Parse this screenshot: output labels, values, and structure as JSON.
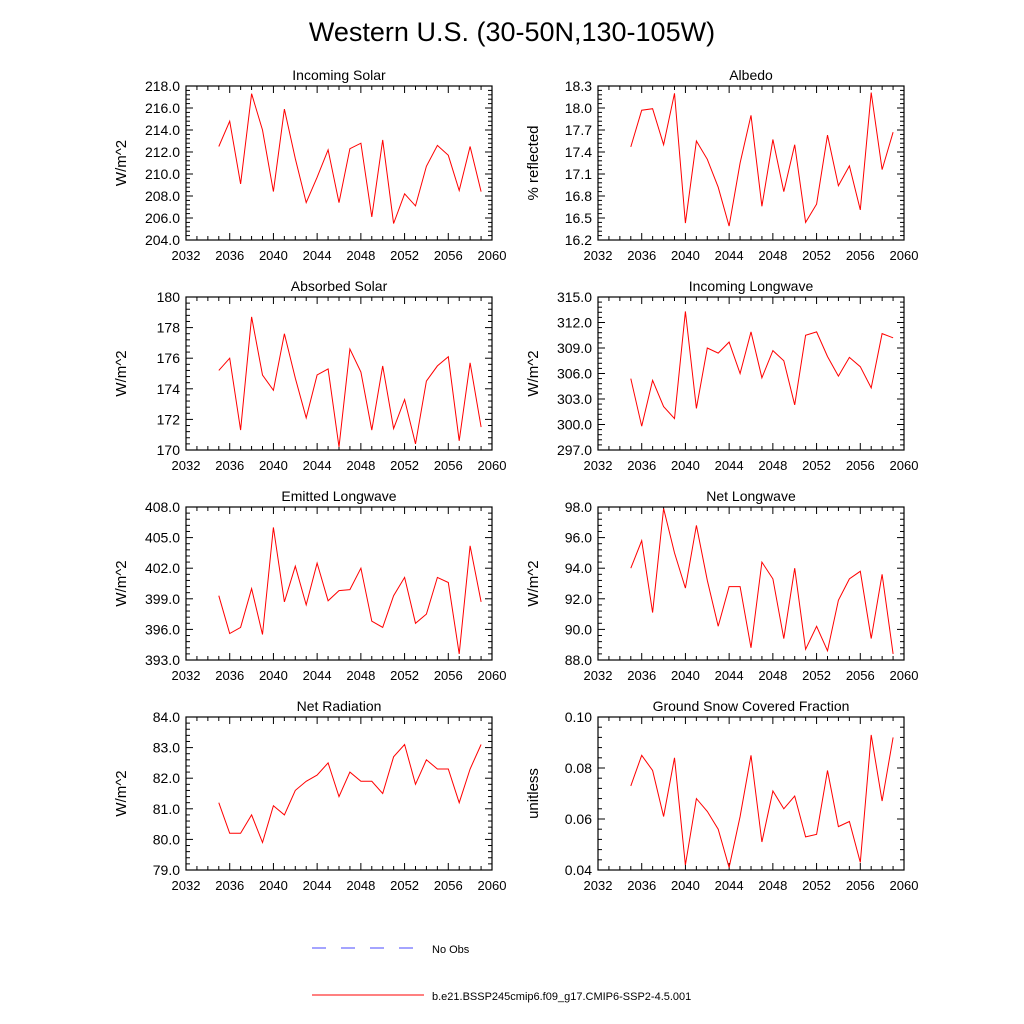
{
  "title": "Western U.S. (30-50N,130-105W)",
  "legend": {
    "obs_label": "No Obs",
    "model_label": "b.e21.BSSP245cmip6.f09_g17.CMIP6-SSP2-4.5.001",
    "obs_color": "#4a4aff",
    "model_color": "#ff0000"
  },
  "chart_data": [
    {
      "type": "line",
      "title": "Incoming Solar",
      "ylabel": "W/m^2",
      "xlim": [
        2032,
        2060
      ],
      "ylim": [
        204.0,
        218.0
      ],
      "xticks": [
        "2032",
        "2036",
        "2040",
        "2044",
        "2048",
        "2052",
        "2056",
        "2060"
      ],
      "yticks": [
        "204.0",
        "206.0",
        "208.0",
        "210.0",
        "212.0",
        "214.0",
        "216.0",
        "218.0"
      ],
      "x": [
        2035,
        2036,
        2037,
        2038,
        2039,
        2040,
        2041,
        2042,
        2043,
        2044,
        2045,
        2046,
        2047,
        2048,
        2049,
        2050,
        2051,
        2052,
        2053,
        2054,
        2055,
        2056,
        2057,
        2058,
        2059
      ],
      "series": [
        {
          "values": [
            212.5,
            214.8,
            209.1,
            217.3,
            214.0,
            208.4,
            215.9,
            211.4,
            207.4,
            209.7,
            212.2,
            207.4,
            212.3,
            212.8,
            206.1,
            213.1,
            205.5,
            208.2,
            207.1,
            210.7,
            212.6,
            211.7,
            208.5,
            212.5,
            208.4
          ]
        }
      ]
    },
    {
      "type": "line",
      "title": "Albedo",
      "ylabel": "% reflected",
      "xlim": [
        2032,
        2060
      ],
      "ylim": [
        16.2,
        18.3
      ],
      "xticks": [
        "2032",
        "2036",
        "2040",
        "2044",
        "2048",
        "2052",
        "2056",
        "2060"
      ],
      "yticks": [
        "16.2",
        "16.5",
        "16.8",
        "17.1",
        "17.4",
        "17.7",
        "18.0",
        "18.3"
      ],
      "x": [
        2035,
        2036,
        2037,
        2038,
        2039,
        2040,
        2041,
        2042,
        2043,
        2044,
        2045,
        2046,
        2047,
        2048,
        2049,
        2050,
        2051,
        2052,
        2053,
        2054,
        2055,
        2056,
        2057,
        2058,
        2059
      ],
      "series": [
        {
          "values": [
            17.47,
            17.97,
            17.99,
            17.5,
            18.2,
            16.43,
            17.55,
            17.3,
            16.92,
            16.39,
            17.25,
            17.9,
            16.66,
            17.57,
            16.86,
            17.5,
            16.44,
            16.69,
            17.63,
            16.94,
            17.21,
            16.61,
            18.21,
            17.16,
            17.67
          ]
        }
      ]
    },
    {
      "type": "line",
      "title": "Absorbed Solar",
      "ylabel": "W/m^2",
      "xlim": [
        2032,
        2060
      ],
      "ylim": [
        170,
        180
      ],
      "xticks": [
        "2032",
        "2036",
        "2040",
        "2044",
        "2048",
        "2052",
        "2056",
        "2060"
      ],
      "yticks": [
        "170",
        "172",
        "174",
        "176",
        "178",
        "180"
      ],
      "x": [
        2035,
        2036,
        2037,
        2038,
        2039,
        2040,
        2041,
        2042,
        2043,
        2044,
        2045,
        2046,
        2047,
        2048,
        2049,
        2050,
        2051,
        2052,
        2053,
        2054,
        2055,
        2056,
        2057,
        2058,
        2059
      ],
      "series": [
        {
          "values": [
            175.2,
            176.0,
            171.3,
            178.7,
            174.9,
            173.9,
            177.6,
            174.7,
            172.1,
            174.9,
            175.3,
            170.2,
            176.6,
            175.1,
            171.3,
            175.5,
            171.4,
            173.3,
            170.4,
            174.5,
            175.5,
            176.1,
            170.6,
            175.7,
            171.5
          ]
        }
      ]
    },
    {
      "type": "line",
      "title": "Incoming Longwave",
      "ylabel": "W/m^2",
      "xlim": [
        2032,
        2060
      ],
      "ylim": [
        297.0,
        315.0
      ],
      "xticks": [
        "2032",
        "2036",
        "2040",
        "2044",
        "2048",
        "2052",
        "2056",
        "2060"
      ],
      "yticks": [
        "297.0",
        "300.0",
        "303.0",
        "306.0",
        "309.0",
        "312.0",
        "315.0"
      ],
      "x": [
        2035,
        2036,
        2037,
        2038,
        2039,
        2040,
        2041,
        2042,
        2043,
        2044,
        2045,
        2046,
        2047,
        2048,
        2049,
        2050,
        2051,
        2052,
        2053,
        2054,
        2055,
        2056,
        2057,
        2058,
        2059
      ],
      "series": [
        {
          "values": [
            305.4,
            299.8,
            305.2,
            302.1,
            300.7,
            313.3,
            301.9,
            309.0,
            308.4,
            309.7,
            306.0,
            310.9,
            305.5,
            308.7,
            307.5,
            302.3,
            310.5,
            310.9,
            308.0,
            305.7,
            307.9,
            306.8,
            304.3,
            310.7,
            310.2
          ]
        }
      ]
    },
    {
      "type": "line",
      "title": "Emitted Longwave",
      "ylabel": "W/m^2",
      "xlim": [
        2032,
        2060
      ],
      "ylim": [
        393.0,
        408.0
      ],
      "xticks": [
        "2032",
        "2036",
        "2040",
        "2044",
        "2048",
        "2052",
        "2056",
        "2060"
      ],
      "yticks": [
        "393.0",
        "396.0",
        "399.0",
        "402.0",
        "405.0",
        "408.0"
      ],
      "x": [
        2035,
        2036,
        2037,
        2038,
        2039,
        2040,
        2041,
        2042,
        2043,
        2044,
        2045,
        2046,
        2047,
        2048,
        2049,
        2050,
        2051,
        2052,
        2053,
        2054,
        2055,
        2056,
        2057,
        2058,
        2059
      ],
      "series": [
        {
          "values": [
            399.3,
            395.6,
            396.2,
            400.0,
            395.5,
            406.0,
            398.7,
            402.2,
            398.4,
            402.5,
            398.8,
            399.8,
            399.9,
            402.0,
            396.8,
            396.2,
            399.3,
            401.1,
            396.6,
            397.5,
            401.1,
            400.6,
            393.6,
            404.2,
            398.7
          ]
        }
      ]
    },
    {
      "type": "line",
      "title": "Net Longwave",
      "ylabel": "W/m^2",
      "xlim": [
        2032,
        2060
      ],
      "ylim": [
        88.0,
        98.0
      ],
      "xticks": [
        "2032",
        "2036",
        "2040",
        "2044",
        "2048",
        "2052",
        "2056",
        "2060"
      ],
      "yticks": [
        "88.0",
        "90.0",
        "92.0",
        "94.0",
        "96.0",
        "98.0"
      ],
      "x": [
        2035,
        2036,
        2037,
        2038,
        2039,
        2040,
        2041,
        2042,
        2043,
        2044,
        2045,
        2046,
        2047,
        2048,
        2049,
        2050,
        2051,
        2052,
        2053,
        2054,
        2055,
        2056,
        2057,
        2058,
        2059
      ],
      "series": [
        {
          "values": [
            94.0,
            95.8,
            91.1,
            97.9,
            95.0,
            92.7,
            96.8,
            93.2,
            90.2,
            92.8,
            92.8,
            88.8,
            94.4,
            93.3,
            89.4,
            94.0,
            88.7,
            90.2,
            88.6,
            91.9,
            93.3,
            93.8,
            89.4,
            93.6,
            88.4
          ]
        }
      ]
    },
    {
      "type": "line",
      "title": "Net Radiation",
      "ylabel": "W/m^2",
      "xlim": [
        2032,
        2060
      ],
      "ylim": [
        79.0,
        84.0
      ],
      "xticks": [
        "2032",
        "2036",
        "2040",
        "2044",
        "2048",
        "2052",
        "2056",
        "2060"
      ],
      "yticks": [
        "79.0",
        "80.0",
        "81.0",
        "82.0",
        "83.0",
        "84.0"
      ],
      "x": [
        2035,
        2036,
        2037,
        2038,
        2039,
        2040,
        2041,
        2042,
        2043,
        2044,
        2045,
        2046,
        2047,
        2048,
        2049,
        2050,
        2051,
        2052,
        2053,
        2054,
        2055,
        2056,
        2057,
        2058,
        2059
      ],
      "series": [
        {
          "values": [
            81.2,
            80.2,
            80.2,
            80.8,
            79.9,
            81.1,
            80.8,
            81.6,
            81.9,
            82.1,
            82.5,
            81.4,
            82.2,
            81.9,
            81.9,
            81.5,
            82.7,
            83.1,
            81.8,
            82.6,
            82.3,
            82.3,
            81.2,
            82.3,
            83.1
          ]
        }
      ]
    },
    {
      "type": "line",
      "title": "Ground Snow Covered Fraction",
      "ylabel": "unitless",
      "xlim": [
        2032,
        2060
      ],
      "ylim": [
        0.04,
        0.1
      ],
      "xticks": [
        "2032",
        "2036",
        "2040",
        "2044",
        "2048",
        "2052",
        "2056",
        "2060"
      ],
      "yticks": [
        "0.04",
        "0.06",
        "0.08",
        "0.10"
      ],
      "x": [
        2035,
        2036,
        2037,
        2038,
        2039,
        2040,
        2041,
        2042,
        2043,
        2044,
        2045,
        2046,
        2047,
        2048,
        2049,
        2050,
        2051,
        2052,
        2053,
        2054,
        2055,
        2056,
        2057,
        2058,
        2059
      ],
      "series": [
        {
          "values": [
            0.073,
            0.085,
            0.079,
            0.061,
            0.084,
            0.042,
            0.068,
            0.063,
            0.056,
            0.041,
            0.061,
            0.085,
            0.051,
            0.071,
            0.064,
            0.069,
            0.053,
            0.054,
            0.079,
            0.057,
            0.059,
            0.043,
            0.093,
            0.067,
            0.092
          ]
        }
      ]
    }
  ]
}
